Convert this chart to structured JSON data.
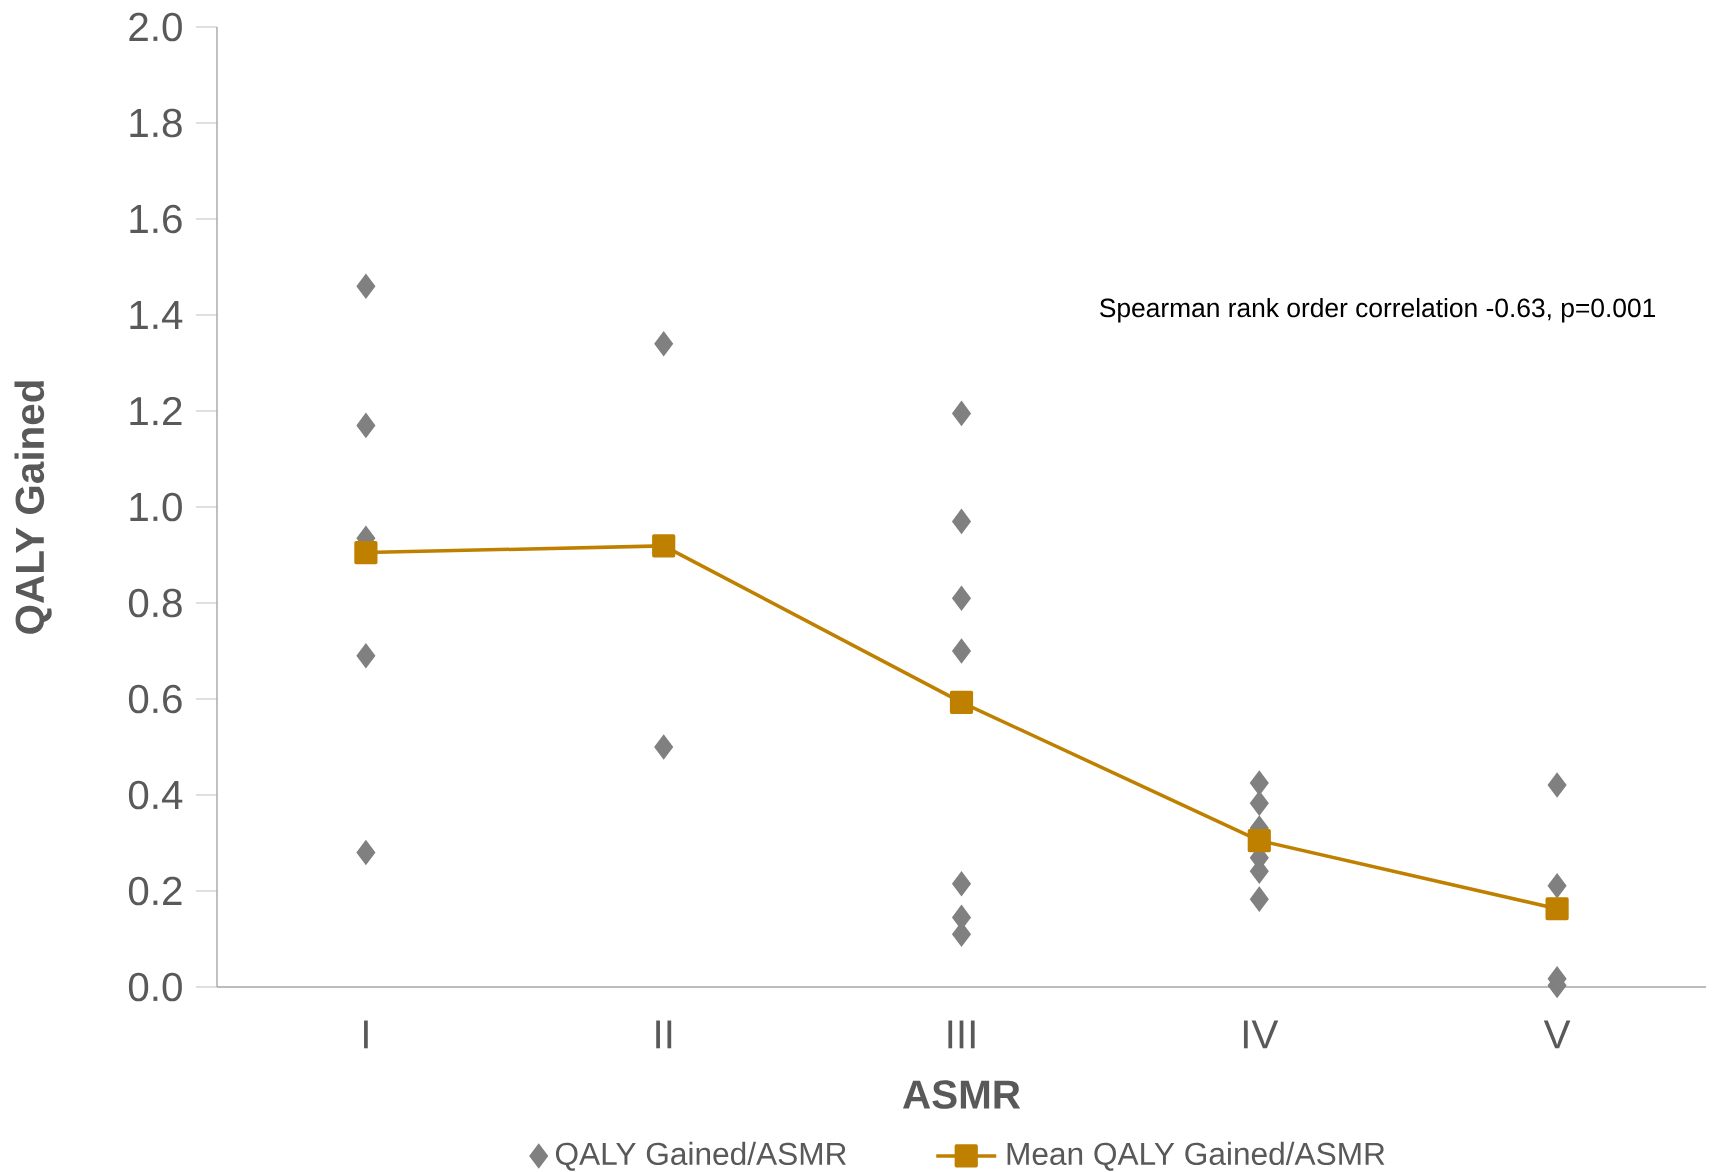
{
  "chart_data": {
    "type": "scatter",
    "xlabel": "ASMR",
    "ylabel": "QALY Gained",
    "categories": [
      "I",
      "II",
      "III",
      "IV",
      "V"
    ],
    "series": [
      {
        "name": "QALY Gained/ASMR",
        "color": "#808080",
        "marker": "diamond",
        "x": [
          "I",
          "I",
          "I",
          "I",
          "I",
          "II",
          "II",
          "III",
          "III",
          "III",
          "III",
          "III",
          "III",
          "III",
          "IV",
          "IV",
          "IV",
          "IV",
          "IV",
          "IV",
          "V",
          "V",
          "V",
          "V"
        ],
        "values": [
          1.46,
          1.17,
          0.935,
          0.69,
          0.28,
          1.34,
          0.5,
          1.195,
          0.97,
          0.81,
          0.7,
          0.215,
          0.145,
          0.11,
          0.425,
          0.383,
          0.331,
          0.269,
          0.241,
          0.183,
          0.421,
          0.211,
          0.017,
          0.003
        ]
      },
      {
        "name": "Mean QALY Gained/ASMR",
        "type": "line",
        "color": "#bf8000",
        "marker": "square",
        "line_style": "solid",
        "values": [
          0.905,
          0.919,
          0.593,
          0.305,
          0.163
        ]
      }
    ],
    "ylim": [
      0,
      2.0
    ],
    "yticks": [
      {
        "value": 0,
        "label": "0.0"
      },
      {
        "value": 0.2,
        "label": "0.2"
      },
      {
        "value": 0.4,
        "label": "0.4"
      },
      {
        "value": 0.6,
        "label": "0.6"
      },
      {
        "value": 0.8,
        "label": "0.8"
      },
      {
        "value": 1.0,
        "label": "1.0"
      },
      {
        "value": 1.2,
        "label": "1.2"
      },
      {
        "value": 1.4,
        "label": "1.4"
      },
      {
        "value": 1.6,
        "label": "1.6"
      },
      {
        "value": 1.8,
        "label": "1.8"
      },
      {
        "value": 2.0,
        "label": "2.0"
      }
    ],
    "grid": false,
    "legend": "bottom",
    "annotations": [
      "Spearman rank order correlation -0.63, p=0.001"
    ]
  }
}
